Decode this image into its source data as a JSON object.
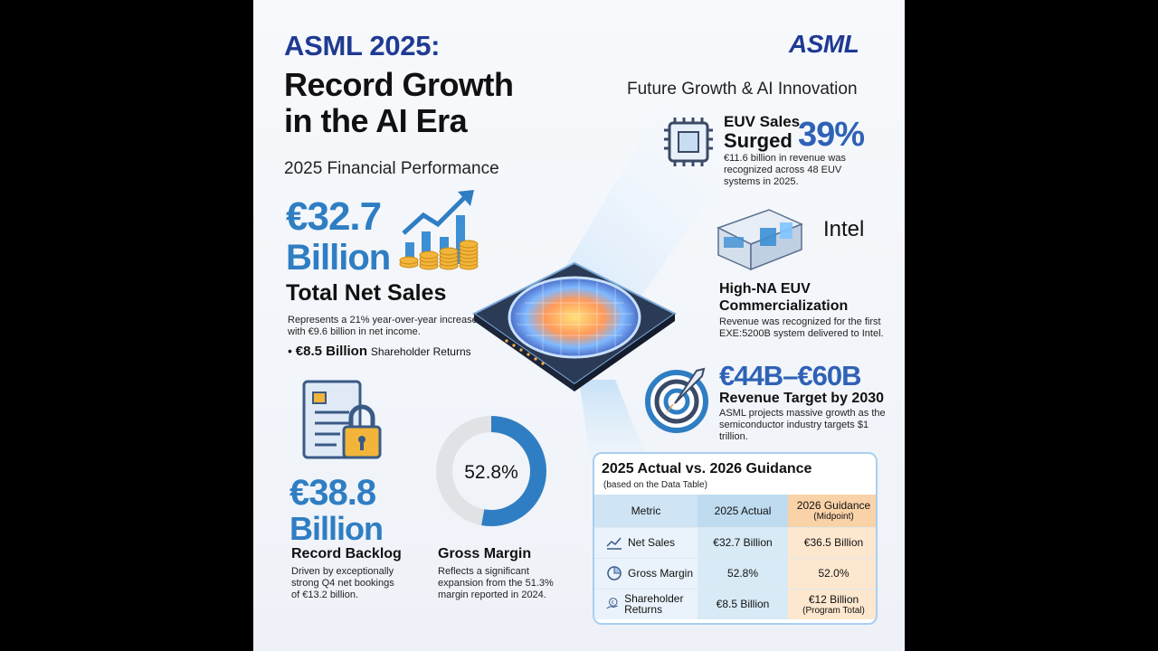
{
  "header": {
    "title_line1": "ASML 2025:",
    "title_line2": "Record Growth",
    "title_line3": "in the AI Era",
    "logo": "ASML"
  },
  "financial": {
    "section_title": "2025 Financial Performance",
    "net_sales_value": "€32.7",
    "net_sales_unit": "Billion",
    "net_sales_label": "Total Net Sales",
    "net_sales_desc": "Represents a 21% year-over-year increase with €9.6 billion in net income.",
    "shareholder_bullet": "•",
    "shareholder_value": "€8.5 Billion",
    "shareholder_label": "Shareholder Returns",
    "backlog_value": "€38.8",
    "backlog_unit": "Billion",
    "backlog_label": "Record Backlog",
    "backlog_desc": "Driven by exceptionally strong Q4 net bookings of €13.2 billion.",
    "gross_margin_value": "52.8%",
    "gross_margin_fraction": 0.528,
    "gross_margin_label": "Gross Margin",
    "gross_margin_desc": "Reflects a significant expansion from the 51.3% margin reported in 2024."
  },
  "future": {
    "section_title": "Future Growth & AI Innovation",
    "euv_label1": "EUV Sales",
    "euv_label2": "Surged",
    "euv_pct": "39%",
    "euv_desc": "€11.6 billion in revenue was recognized across 48 EUV systems in 2025.",
    "intel": "Intel",
    "hna_title": "High-NA EUV Commercialization",
    "hna_desc": "Revenue was recognized for the first EXE:5200B system delivered to Intel.",
    "target_value": "€44B–€60B",
    "target_label": "Revenue Target by 2030",
    "target_desc": "ASML projects massive growth as the semiconductor industry targets $1 trillion."
  },
  "guidance_table": {
    "title": "2025 Actual vs. 2026 Guidance",
    "subtitle": "(based on the Data Table)",
    "headers": [
      "Metric",
      "2025 Actual",
      "2026 Guidance",
      "(Midpoint)"
    ],
    "rows": [
      {
        "metric": "Net Sales",
        "icon": "chart-icon",
        "actual": "€32.7 Billion",
        "guidance": "€36.5 Billion",
        "guidance_note": ""
      },
      {
        "metric": "Gross Margin",
        "icon": "pie-icon",
        "actual": "52.8%",
        "guidance": "52.0%",
        "guidance_note": ""
      },
      {
        "metric": "Shareholder Returns",
        "icon": "euro-hand-icon",
        "actual": "€8.5 Billion",
        "guidance": "€12 Billion",
        "guidance_note": "(Program Total)"
      }
    ]
  },
  "colors": {
    "brand_blue": "#1f3a93",
    "value_blue": "#2f7ec3",
    "accent_orange": "#f5a24b"
  }
}
